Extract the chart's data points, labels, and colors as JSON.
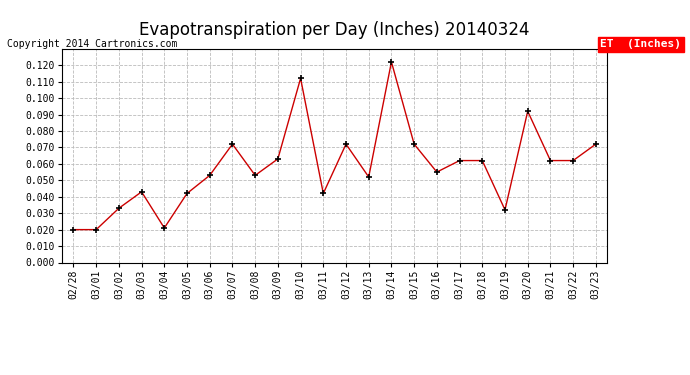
{
  "title": "Evapotranspiration per Day (Inches) 20140324",
  "copyright_text": "Copyright 2014 Cartronics.com",
  "legend_label": "ET  (Inches)",
  "legend_bg": "#ff0000",
  "legend_text_color": "#ffffff",
  "dates": [
    "02/28",
    "03/01",
    "03/02",
    "03/03",
    "03/04",
    "03/05",
    "03/06",
    "03/07",
    "03/08",
    "03/09",
    "03/10",
    "03/11",
    "03/12",
    "03/13",
    "03/14",
    "03/15",
    "03/16",
    "03/17",
    "03/18",
    "03/19",
    "03/20",
    "03/21",
    "03/22",
    "03/23"
  ],
  "values": [
    0.02,
    0.02,
    0.033,
    0.043,
    0.021,
    0.042,
    0.053,
    0.072,
    0.053,
    0.063,
    0.112,
    0.042,
    0.072,
    0.052,
    0.122,
    0.072,
    0.055,
    0.062,
    0.062,
    0.032,
    0.092,
    0.062,
    0.062,
    0.072
  ],
  "line_color": "#cc0000",
  "marker": "+",
  "marker_color": "#000000",
  "marker_size": 5,
  "ylim": [
    0.0,
    0.13
  ],
  "yticks": [
    0.0,
    0.01,
    0.02,
    0.03,
    0.04,
    0.05,
    0.06,
    0.07,
    0.08,
    0.09,
    0.1,
    0.11,
    0.12
  ],
  "grid_color": "#bbbbbb",
  "grid_style": "--",
  "bg_color": "#ffffff",
  "title_fontsize": 12,
  "copyright_fontsize": 7,
  "axis_fontsize": 7,
  "legend_fontsize": 8
}
